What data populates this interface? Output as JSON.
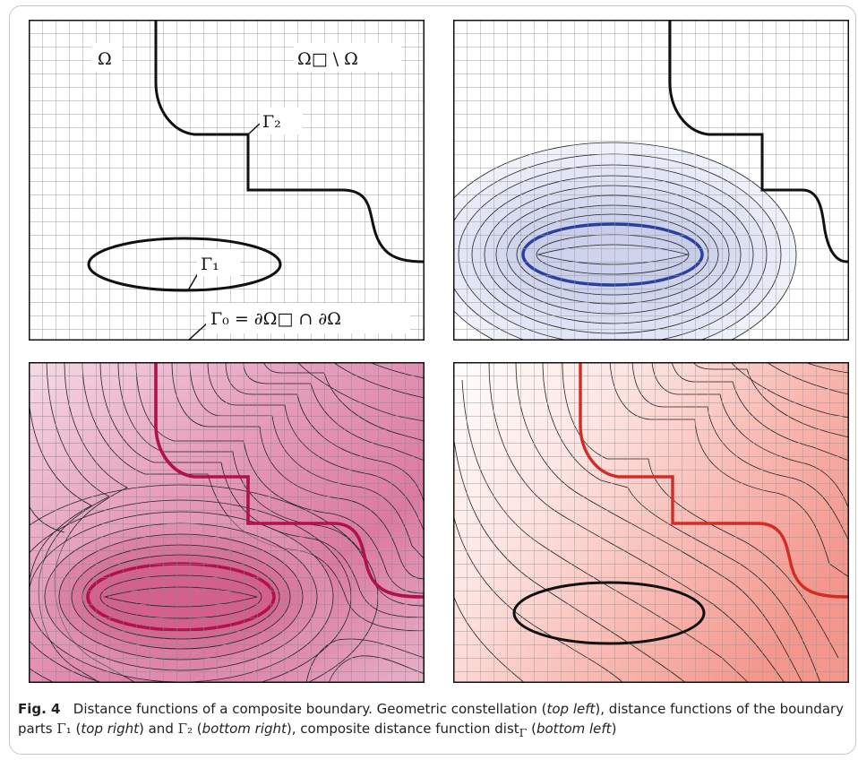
{
  "figure": {
    "labels": {
      "omega": "Ω",
      "omega_box_minus_omega": "Ω□ \\ Ω",
      "gamma2": "Γ₂",
      "gamma1": "Γ₁",
      "gamma0": "Γ₀ = ∂Ω□ ∩ ∂Ω"
    },
    "colors": {
      "grid": "#9a9a9a",
      "boundary": "#111111",
      "blue_curve": "#2b3f9e",
      "blue_fill": "#dfe2f4",
      "magenta_curve": "#b0124a",
      "magenta_fill": "#d6598a",
      "red_curve": "#d12d25",
      "red_fill": "#f28b82"
    }
  },
  "caption": {
    "fig_label": "Fig. 4",
    "text1": "Distance functions of a composite boundary. Geometric constellation (",
    "pos_top_left": "top left",
    "text2": "), distance functions of the boundary parts ",
    "g1": "Γ₁",
    "text3": " (",
    "pos_top_right": "top right",
    "text4": ") and ",
    "g2": "Γ₂",
    "text5": " (",
    "pos_bottom_right": "bottom right",
    "text6": "), composite distance function dist",
    "sub_gamma": "Γ",
    "text7": " (",
    "pos_bottom_left": "bottom left",
    "text8": ")"
  }
}
